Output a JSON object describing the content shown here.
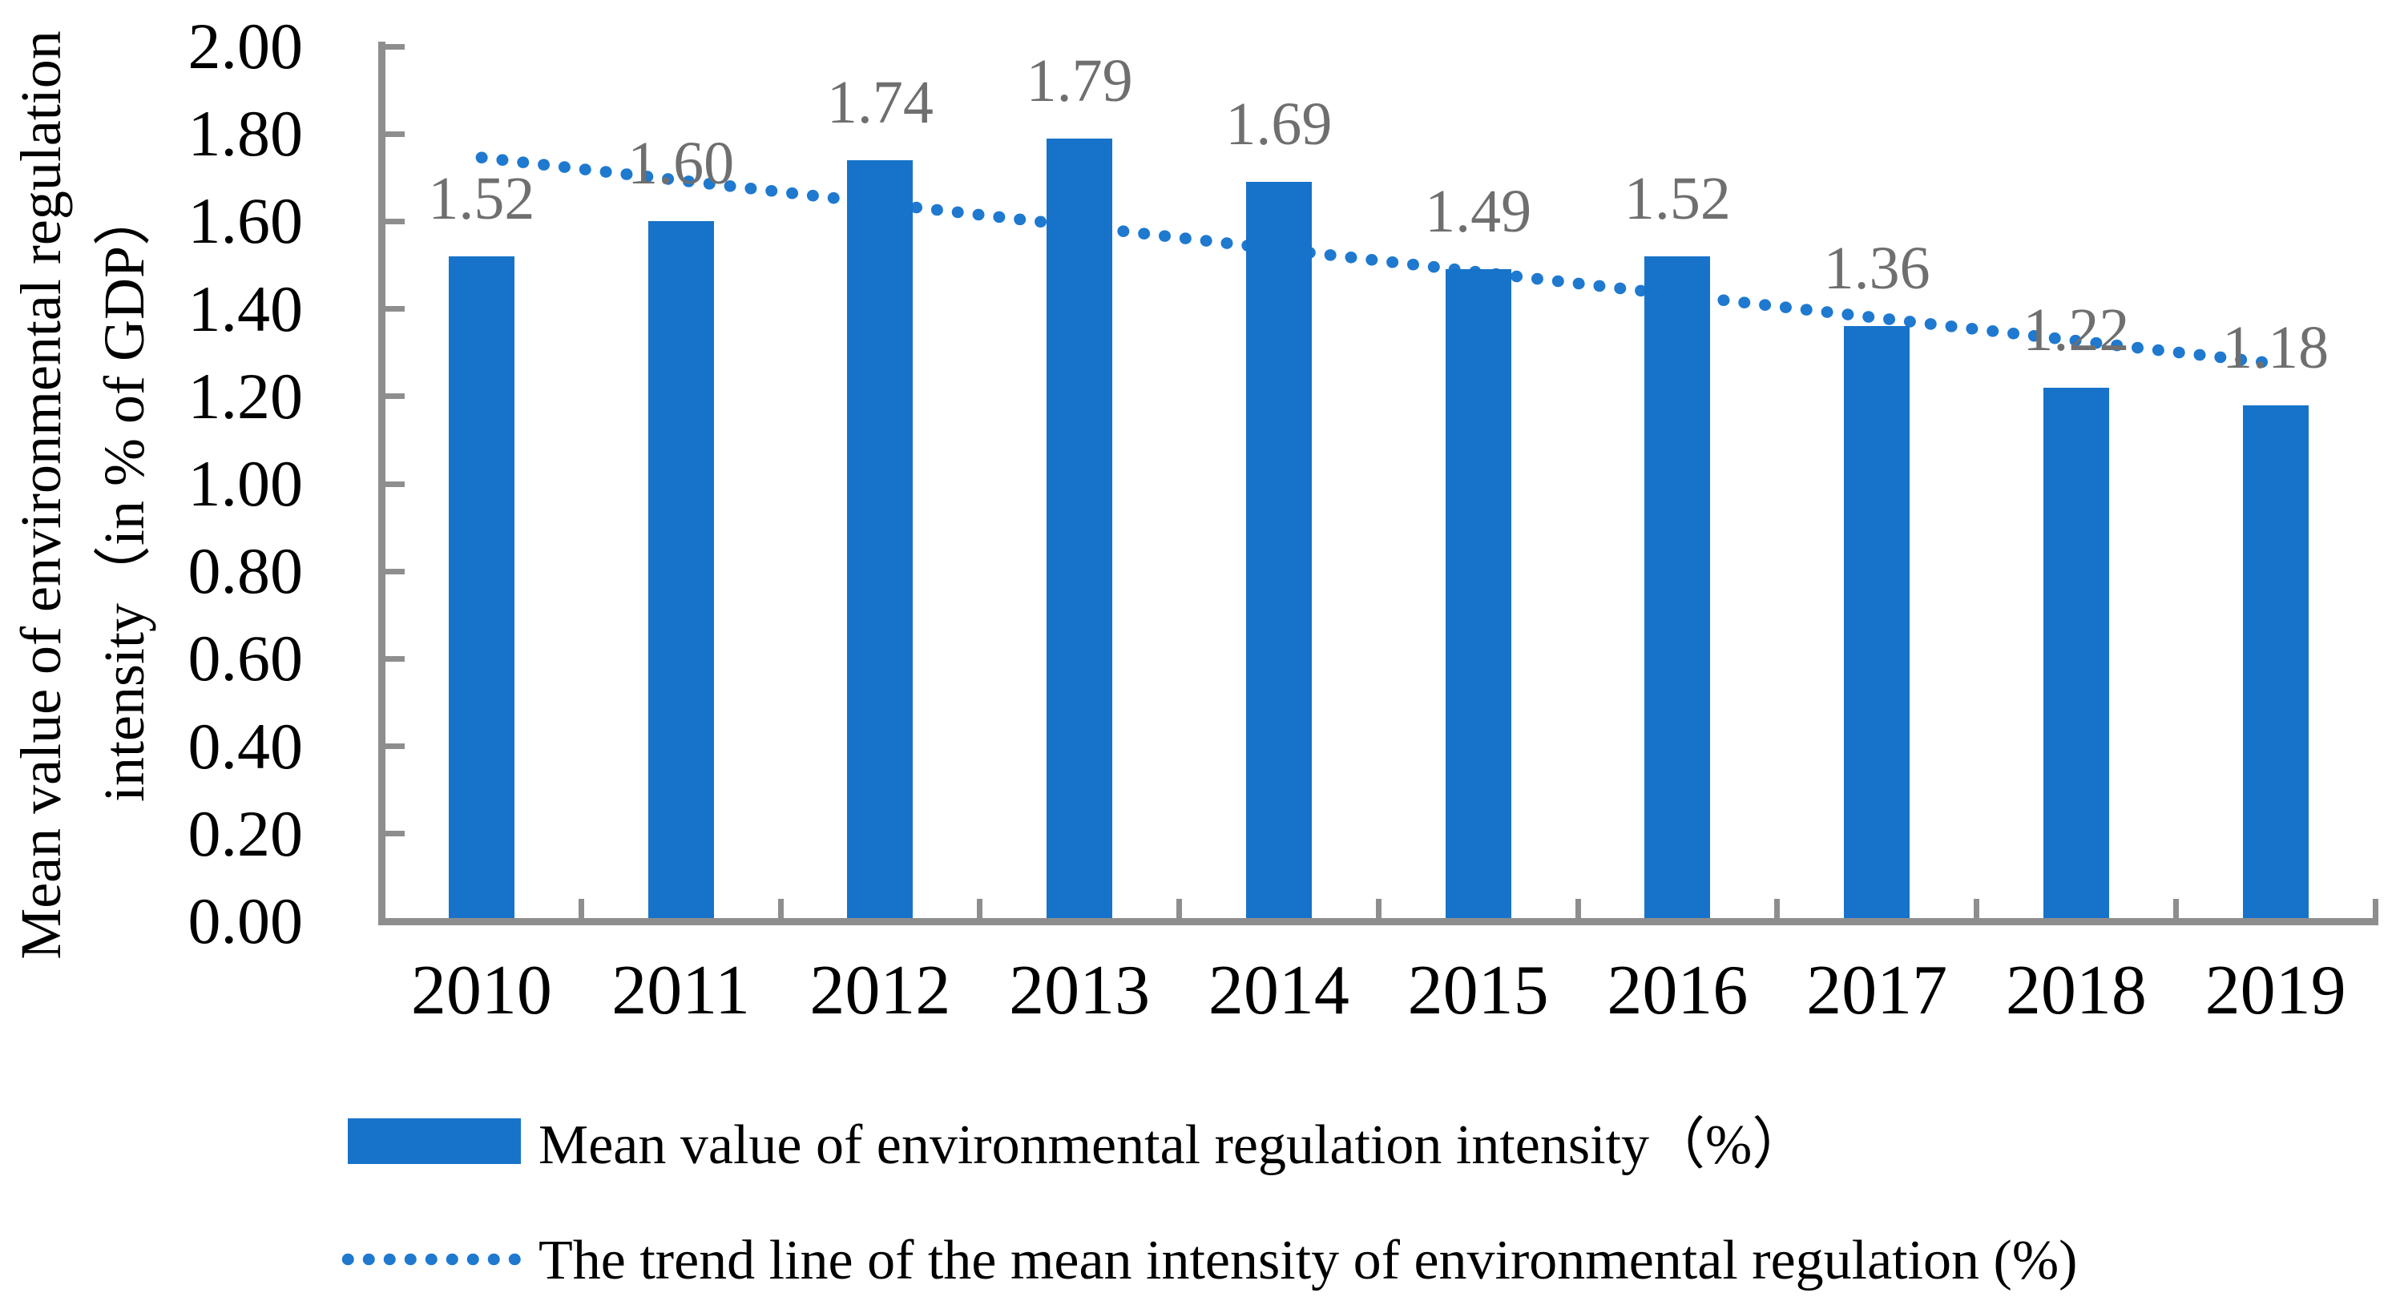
{
  "chart_data": {
    "type": "bar",
    "title": "",
    "categories": [
      "2010",
      "2011",
      "2012",
      "2013",
      "2014",
      "2015",
      "2016",
      "2017",
      "2018",
      "2019"
    ],
    "series": [
      {
        "name": "Mean value of environmental regulation intensity（%）",
        "type": "bar",
        "values": [
          1.52,
          1.6,
          1.74,
          1.79,
          1.69,
          1.49,
          1.52,
          1.36,
          1.22,
          1.18
        ],
        "data_labels": [
          "1.52",
          "1.60",
          "1.74",
          "1.79",
          "1.69",
          "1.49",
          "1.52",
          "1.36",
          "1.22",
          "1.18"
        ]
      },
      {
        "name": "The trend line of the mean intensity of environmental regulation (%)",
        "type": "linear-trendline",
        "style": "dotted",
        "trend_start_value": 1.746,
        "trend_end_value": 1.275
      }
    ],
    "ylabel_line1": "Mean value of environmental regulation",
    "ylabel_line2": "intensity（in % of GDP）",
    "xlabel": "",
    "ylim": [
      0,
      2
    ],
    "ytick_step": 0.2,
    "ytick_labels": [
      "0.00",
      "0.20",
      "0.40",
      "0.60",
      "0.80",
      "1.00",
      "1.20",
      "1.40",
      "1.60",
      "1.80",
      "2.00"
    ],
    "grid": false,
    "legend_position": "bottom-left",
    "axis_tick_direction": "inward"
  },
  "colors": {
    "bar_fill": "#1773c9",
    "trend_dot": "#1e79cf",
    "axis_line": "#8e8e8e",
    "data_label": "#6f6f6f",
    "axis_text": "#000000"
  },
  "legend": {
    "items": [
      {
        "swatch": "bar-swatch",
        "label": "Mean value of environmental regulation intensity（%）"
      },
      {
        "swatch": "dotted-line-swatch",
        "label": "The trend line of the mean intensity of environmental regulation (%)"
      }
    ]
  }
}
